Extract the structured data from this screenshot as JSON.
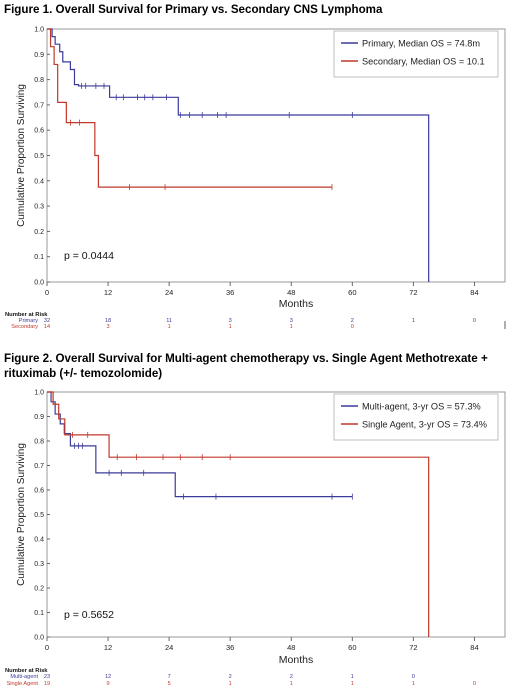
{
  "figures": [
    {
      "title": "Figure 1.  Overall Survival for Primary vs. Secondary CNS Lymphoma"
    },
    {
      "title": "Figure 2.  Overall Survival for Multi-agent chemotherapy vs. Single Agent Methotrexate + rituximab (+/- temozolomide)"
    }
  ],
  "chart_data": [
    {
      "type": "line",
      "subtype": "kaplan-meier",
      "xlabel": "Months",
      "ylabel": "Cumulative Proportion Surviving",
      "xlim": [
        0,
        90
      ],
      "ylim": [
        0,
        1.0
      ],
      "xticks": [
        "0",
        "12",
        "24",
        "36",
        "48",
        "60",
        "72",
        "84"
      ],
      "xtick_values": [
        0,
        12,
        24,
        36,
        48,
        60,
        72,
        84
      ],
      "yticks": [
        "0.0",
        "0.1",
        "0.2",
        "0.3",
        "0.4",
        "0.5",
        "0.6",
        "0.7",
        "0.8",
        "0.9",
        "1.0"
      ],
      "yticks_values": [
        0,
        0.1,
        0.2,
        0.3,
        0.4,
        0.5,
        0.6,
        0.7,
        0.8,
        0.9,
        1.0
      ],
      "annotation": "p = 0.0444",
      "legend_position": "top-right",
      "grid": false,
      "series": [
        {
          "name": "Primary, Median OS = 74.8m",
          "color": "#3b3b9a",
          "steps": [
            [
              0,
              1.0
            ],
            [
              1,
              0.97
            ],
            [
              1.6,
              0.94
            ],
            [
              2.5,
              0.91
            ],
            [
              3.1,
              0.87
            ],
            [
              4.6,
              0.84
            ],
            [
              5.4,
              0.78
            ],
            [
              6.2,
              0.775
            ],
            [
              12.3,
              0.73
            ],
            [
              25.8,
              0.66
            ],
            [
              75,
              0.0
            ]
          ],
          "end": 75,
          "censored": [
            [
              6.8,
              0.775
            ],
            [
              7.6,
              0.775
            ],
            [
              9.6,
              0.775
            ],
            [
              11.2,
              0.775
            ],
            [
              13.6,
              0.73
            ],
            [
              15,
              0.73
            ],
            [
              17.8,
              0.73
            ],
            [
              19.2,
              0.73
            ],
            [
              20.8,
              0.73
            ],
            [
              23.5,
              0.73
            ],
            [
              26.2,
              0.66
            ],
            [
              28,
              0.66
            ],
            [
              30.5,
              0.66
            ],
            [
              33.5,
              0.66
            ],
            [
              35.2,
              0.66
            ],
            [
              47.6,
              0.66
            ],
            [
              60,
              0.66
            ]
          ]
        },
        {
          "name": "Secondary, Median OS = 10.1",
          "color": "#c0392b",
          "steps": [
            [
              0,
              1.0
            ],
            [
              0.7,
              0.93
            ],
            [
              1.4,
              0.86
            ],
            [
              2.1,
              0.71
            ],
            [
              3.8,
              0.63
            ],
            [
              9.4,
              0.5
            ],
            [
              10.1,
              0.375
            ]
          ],
          "end": 56,
          "censored": [
            [
              4.6,
              0.63
            ],
            [
              6.4,
              0.63
            ],
            [
              16.2,
              0.375
            ],
            [
              23.2,
              0.375
            ],
            [
              56,
              0.375
            ]
          ]
        }
      ],
      "risk_table": {
        "header": "Number at Risk",
        "rows": [
          {
            "label": "Primary",
            "color": "#3b3b9a",
            "values": [
              "32",
              "18",
              "11",
              "3",
              "3",
              "2",
              "1",
              "0"
            ]
          },
          {
            "label": "Secondary",
            "color": "#c0392b",
            "values": [
              "14",
              "3",
              "1",
              "1",
              "1",
              "0",
              "",
              ""
            ]
          }
        ]
      }
    },
    {
      "type": "line",
      "subtype": "kaplan-meier",
      "xlabel": "Months",
      "ylabel": "Cumulative Proportion Surviving",
      "xlim": [
        0,
        90
      ],
      "ylim": [
        0,
        1.0
      ],
      "xticks": [
        "0",
        "12",
        "24",
        "36",
        "48",
        "60",
        "72",
        "84"
      ],
      "xtick_values": [
        0,
        12,
        24,
        36,
        48,
        60,
        72,
        84
      ],
      "yticks": [
        "0.0",
        "0.1",
        "0.2",
        "0.3",
        "0.4",
        "0.5",
        "0.6",
        "0.7",
        "0.8",
        "0.9",
        "1.0"
      ],
      "yticks_values": [
        0,
        0.1,
        0.2,
        0.3,
        0.4,
        0.5,
        0.6,
        0.7,
        0.8,
        0.9,
        1.0
      ],
      "annotation": "p = 0.5652",
      "legend_position": "top-right",
      "grid": false,
      "series": [
        {
          "name": "Multi-agent, 3-yr OS = 57.3%",
          "color": "#3b3b9a",
          "steps": [
            [
              0,
              1.0
            ],
            [
              0.8,
              0.96
            ],
            [
              1.6,
              0.91
            ],
            [
              2.6,
              0.87
            ],
            [
              3.4,
              0.83
            ],
            [
              4.6,
              0.78
            ],
            [
              9.6,
              0.67
            ],
            [
              25.2,
              0.573
            ]
          ],
          "end": 60,
          "censored": [
            [
              5.4,
              0.78
            ],
            [
              6.2,
              0.78
            ],
            [
              7,
              0.78
            ],
            [
              12.2,
              0.67
            ],
            [
              14.6,
              0.67
            ],
            [
              19,
              0.67
            ],
            [
              26.8,
              0.573
            ],
            [
              33.2,
              0.573
            ],
            [
              56,
              0.573
            ],
            [
              60,
              0.573
            ]
          ]
        },
        {
          "name": "Single Agent, 3-yr OS = 73.4%",
          "color": "#c0392b",
          "steps": [
            [
              0,
              1.0
            ],
            [
              1.2,
              0.95
            ],
            [
              2.3,
              0.89
            ],
            [
              3.5,
              0.825
            ],
            [
              12.2,
              0.734
            ],
            [
              75,
              0.0
            ]
          ],
          "end": 75,
          "censored": [
            [
              5,
              0.825
            ],
            [
              8,
              0.825
            ],
            [
              13.8,
              0.734
            ],
            [
              17.6,
              0.734
            ],
            [
              22.8,
              0.734
            ],
            [
              26.2,
              0.734
            ],
            [
              30.5,
              0.734
            ],
            [
              36,
              0.734
            ]
          ]
        }
      ],
      "risk_table": {
        "header": "Number at Risk",
        "rows": [
          {
            "label": "Multi-agent",
            "color": "#3b3b9a",
            "values": [
              "23",
              "12",
              "7",
              "2",
              "2",
              "1",
              "0",
              ""
            ]
          },
          {
            "label": "Single Agent",
            "color": "#c0392b",
            "values": [
              "19",
              "9",
              "5",
              "1",
              "1",
              "1",
              "1",
              "0"
            ]
          }
        ]
      }
    }
  ]
}
